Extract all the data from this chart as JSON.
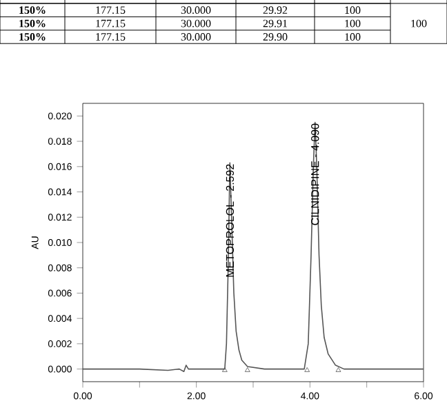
{
  "chart_data": {
    "type": "line",
    "ylabel": "AU",
    "series": [
      {
        "color": "#555555",
        "x": [
          0.0,
          0.5,
          1.0,
          1.5,
          1.7,
          1.78,
          1.82,
          1.86,
          2.0,
          2.4,
          2.5,
          2.53,
          2.56,
          2.59,
          2.62,
          2.66,
          2.7,
          2.75,
          2.8,
          2.9,
          3.2,
          3.9,
          3.97,
          4.02,
          4.06,
          4.09,
          4.12,
          4.16,
          4.2,
          4.25,
          4.32,
          4.45,
          4.6,
          5.0,
          5.5,
          6.0
        ],
        "values": [
          0.0,
          0.0,
          0.0,
          -0.0001,
          0.0,
          -0.0002,
          0.0003,
          0.0,
          0.0,
          0.0,
          0.0,
          0.002,
          0.008,
          0.0163,
          0.012,
          0.006,
          0.003,
          0.0015,
          0.0007,
          0.0002,
          0.0,
          0.0,
          0.002,
          0.009,
          0.016,
          0.0195,
          0.016,
          0.009,
          0.005,
          0.0025,
          0.0012,
          0.0003,
          0.0,
          0.0,
          0.0,
          0.0
        ]
      },
      {
        "type": "scatter",
        "marker": "triangle",
        "color": "#555555",
        "x": [
          2.5,
          2.9,
          3.95,
          4.5
        ],
        "values": [
          -0.0001,
          -0.0001,
          -0.0001,
          -0.0001
        ]
      }
    ],
    "xlim": [
      0,
      6
    ],
    "ylim": [
      -0.001,
      0.021
    ],
    "xticks": [
      {
        "value": 0,
        "label": "0.00"
      },
      {
        "value": 1,
        "label": null
      },
      {
        "value": 2,
        "label": "2.00"
      },
      {
        "value": 3,
        "label": null
      },
      {
        "value": 4,
        "label": "4.00"
      },
      {
        "value": 5,
        "label": null
      },
      {
        "value": 6,
        "label": "6.00"
      }
    ],
    "yticks": [
      {
        "value": 0,
        "label": "0.000"
      },
      {
        "value": 0.002,
        "label": "0.002"
      },
      {
        "value": 0.004,
        "label": "0.004"
      },
      {
        "value": 0.006,
        "label": "0.006"
      },
      {
        "value": 0.008,
        "label": "0.008"
      },
      {
        "value": 0.01,
        "label": "0.010"
      },
      {
        "value": 0.012,
        "label": "0.012"
      },
      {
        "value": 0.014,
        "label": "0.014"
      },
      {
        "value": 0.016,
        "label": "0.016"
      },
      {
        "value": 0.018,
        "label": "0.018"
      },
      {
        "value": 0.02,
        "label": "0.020"
      }
    ],
    "annotations": [
      {
        "text": "METOPROLOL - 2.592",
        "x": 2.592,
        "y": 0.0163
      },
      {
        "text": "CILNIDIPINE - 4.090",
        "x": 4.09,
        "y": 0.0195
      },
      "150%",
      "177.15",
      "30.000",
      "29.92",
      "100",
      "150%",
      "177.15",
      "30.000",
      "29.91",
      "100",
      "150%",
      "177.15",
      "30.000",
      "29.90",
      "100",
      "100"
    ]
  }
}
